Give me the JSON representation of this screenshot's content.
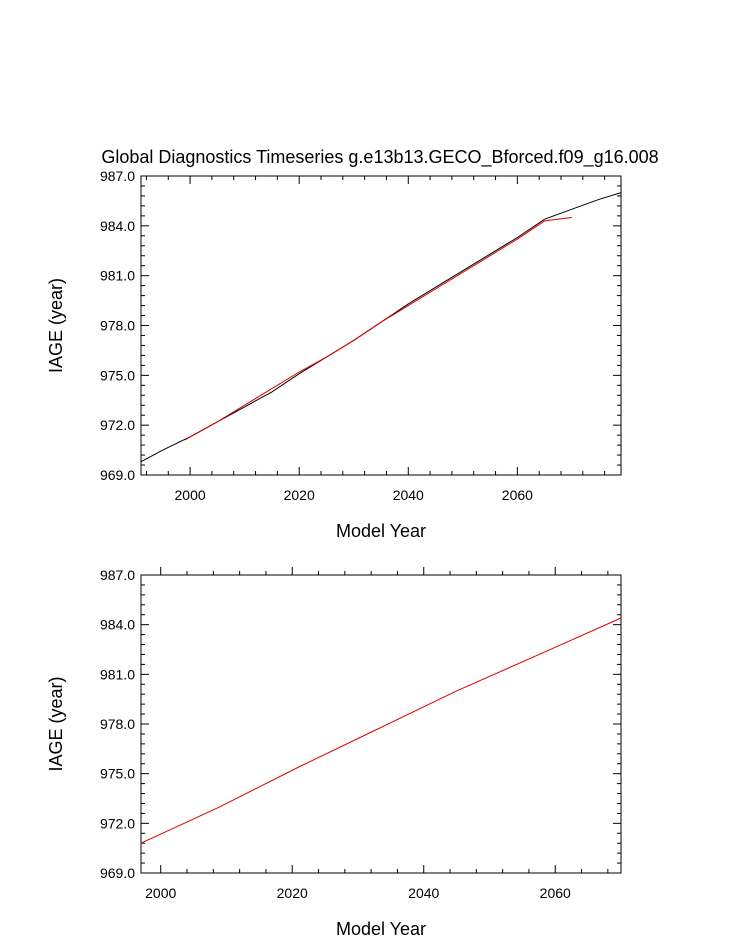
{
  "chart_data": [
    {
      "type": "line",
      "title": "Global Diagnostics Timeseries g.e13b13.GECO_Bforced.f09_g16.008",
      "xlabel": "Model Year",
      "ylabel": "IAGE (year)",
      "xlim": [
        1991,
        2079
      ],
      "ylim": [
        969.0,
        987.0
      ],
      "xticks": [
        2000,
        2020,
        2040,
        2060
      ],
      "yticks": [
        969.0,
        972.0,
        975.0,
        978.0,
        981.0,
        984.0,
        987.0
      ],
      "grid": false,
      "legend": "none",
      "series": [
        {
          "color": "#000000",
          "x": [
            1991,
            1995,
            2000,
            2005,
            2010,
            2015,
            2020,
            2025,
            2030,
            2035,
            2040,
            2045,
            2050,
            2055,
            2060,
            2065,
            2070,
            2075,
            2079
          ],
          "y": [
            969.8,
            970.5,
            971.3,
            972.2,
            973.1,
            974.0,
            975.1,
            976.1,
            977.1,
            978.2,
            979.3,
            980.3,
            981.3,
            982.3,
            983.3,
            984.4,
            985.0,
            985.6,
            986.0
          ]
        },
        {
          "color": "#dd0000",
          "x": [
            1999,
            2005,
            2010,
            2015,
            2020,
            2025,
            2030,
            2035,
            2040,
            2045,
            2050,
            2055,
            2060,
            2065,
            2070
          ],
          "y": [
            971.1,
            972.2,
            973.2,
            974.2,
            975.2,
            976.1,
            977.1,
            978.2,
            979.2,
            980.2,
            981.2,
            982.2,
            983.2,
            984.3,
            984.5
          ]
        }
      ]
    },
    {
      "type": "line",
      "xlabel": "Model Year",
      "ylabel": "IAGE (year)",
      "xlim": [
        1997,
        2070
      ],
      "ylim": [
        969.0,
        987.0
      ],
      "xticks": [
        2000,
        2020,
        2040,
        2060
      ],
      "yticks": [
        969.0,
        972.0,
        975.0,
        978.0,
        981.0,
        984.0,
        987.0
      ],
      "grid": false,
      "legend": "none",
      "series": [
        {
          "color": "#dd0000",
          "x": [
            1997,
            2009,
            2021,
            2033,
            2045,
            2057,
            2070
          ],
          "y": [
            970.8,
            973.0,
            975.4,
            977.7,
            980.0,
            982.1,
            984.4
          ]
        }
      ]
    }
  ]
}
